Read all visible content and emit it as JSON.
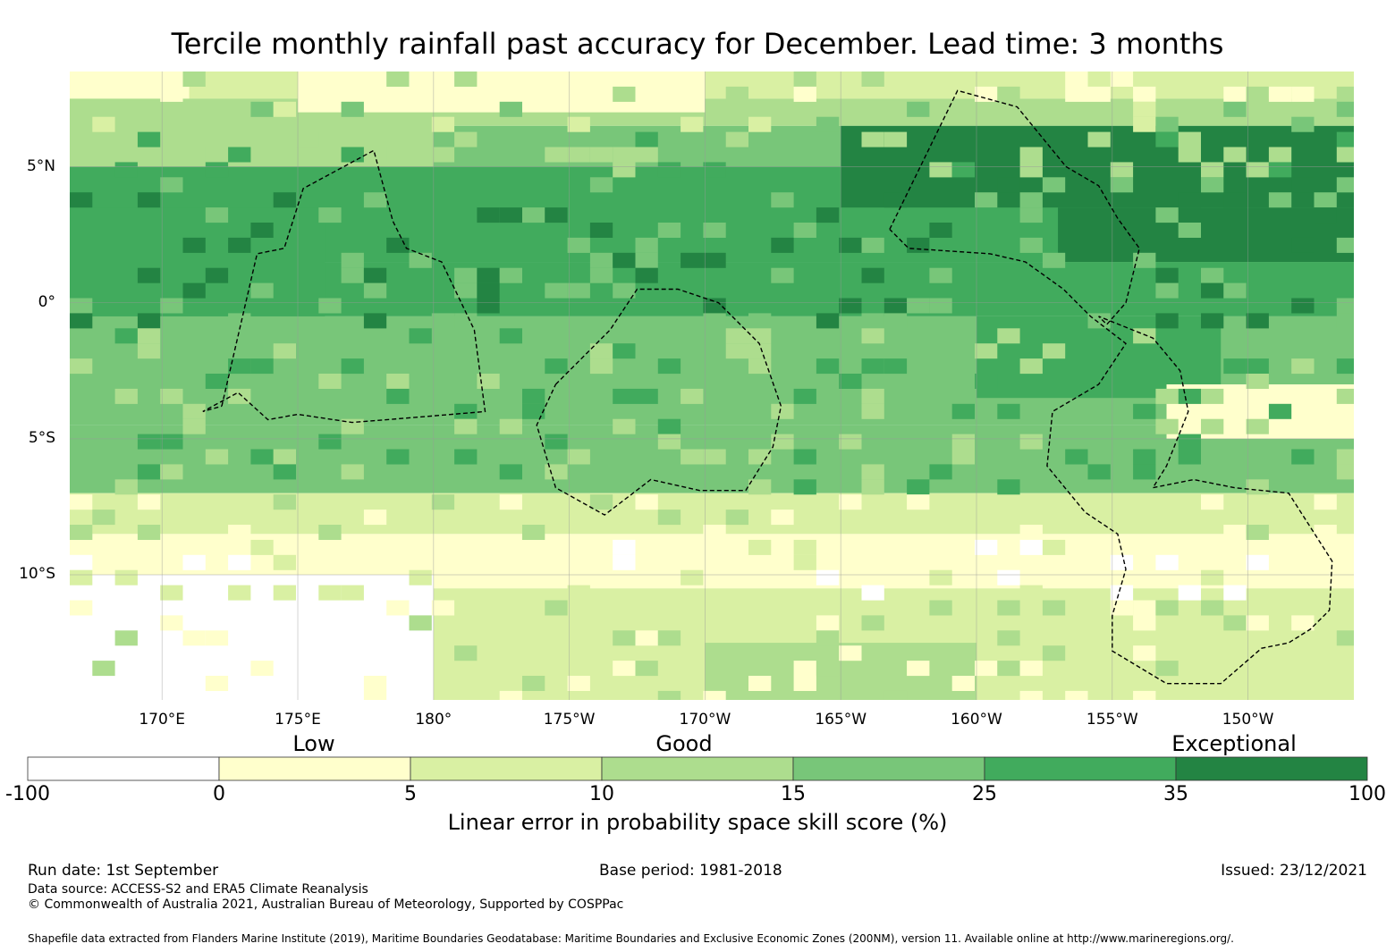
{
  "title": "Tercile monthly rainfall past accuracy for December. Lead time: 3 months",
  "map": {
    "lat_labels": [
      {
        "text": "5°N",
        "lat": 5
      },
      {
        "text": "0°",
        "lat": 0
      },
      {
        "text": "5°S",
        "lat": -5
      },
      {
        "text": "10°S",
        "lat": -10
      }
    ],
    "lon_labels": [
      {
        "text": "170°E",
        "lon": 170
      },
      {
        "text": "175°E",
        "lon": 175
      },
      {
        "text": "180°",
        "lon": 180
      },
      {
        "text": "175°W",
        "lon": 185
      },
      {
        "text": "170°W",
        "lon": 190
      },
      {
        "text": "165°W",
        "lon": 195
      },
      {
        "text": "160°W",
        "lon": 200
      },
      {
        "text": "155°W",
        "lon": 205
      },
      {
        "text": "150°W",
        "lon": 210
      }
    ],
    "extent": {
      "lon_min": 166.6,
      "lon_max": 213.9,
      "lat_min": -14.6,
      "lat_max": 8.5
    },
    "skill_bands": [
      {
        "lat_max": 8.5,
        "lat_min": 7.5,
        "level": 2
      },
      {
        "lat_max": 7.5,
        "lat_min": 6.5,
        "level": 3
      },
      {
        "lat_max": 6.5,
        "lat_min": 5.0,
        "level": 4
      },
      {
        "lat_max": 5.0,
        "lat_min": 1.5,
        "level": 5
      },
      {
        "lat_max": 1.5,
        "lat_min": -0.5,
        "level": 5
      },
      {
        "lat_max": -0.5,
        "lat_min": -4.5,
        "level": 4
      },
      {
        "lat_max": -4.5,
        "lat_min": -7.0,
        "level": 4
      },
      {
        "lat_max": -7.0,
        "lat_min": -8.5,
        "level": 2
      },
      {
        "lat_max": -8.5,
        "lat_min": -10.5,
        "level": 1
      },
      {
        "lat_max": -10.5,
        "lat_min": -14.6,
        "level": 2
      }
    ],
    "skill_patches": [
      {
        "lon": [
          195,
          214
        ],
        "lat": [
          3.5,
          6.5
        ],
        "level": 6
      },
      {
        "lon": [
          203,
          214
        ],
        "lat": [
          1.5,
          3.5
        ],
        "level": 6
      },
      {
        "lon": [
          166.6,
          176
        ],
        "lat": [
          -0.5,
          3.5
        ],
        "level": 5
      },
      {
        "lon": [
          200,
          209
        ],
        "lat": [
          -3.5,
          -0.5
        ],
        "level": 5
      },
      {
        "lon": [
          166.6,
          180
        ],
        "lat": [
          -14.6,
          -10.0
        ],
        "level": 0
      },
      {
        "lon": [
          166.6,
          171
        ],
        "lat": [
          7.5,
          8.5
        ],
        "level": 1
      },
      {
        "lon": [
          207,
          214
        ],
        "lat": [
          -5.0,
          -3.0
        ],
        "level": 1
      },
      {
        "lon": [
          190,
          200
        ],
        "lat": [
          -14.6,
          -12.5
        ],
        "level": 3
      },
      {
        "lon": [
          166.6,
          180
        ],
        "lat": [
          5.0,
          7.5
        ],
        "level": 3
      },
      {
        "lon": [
          175,
          190
        ],
        "lat": [
          7.0,
          8.5
        ],
        "level": 1
      }
    ],
    "eez_outlines": [
      {
        "name": "",
        "points": [
          [
            172.2,
            -3.8
          ],
          [
            173.5,
            1.8
          ],
          [
            174.5,
            2.0
          ],
          [
            175.2,
            4.2
          ],
          [
            177.8,
            5.6
          ],
          [
            178.5,
            3.0
          ],
          [
            179.0,
            2.0
          ],
          [
            180.3,
            1.5
          ],
          [
            181.5,
            -1.0
          ],
          [
            181.9,
            -4.0
          ],
          [
            179.5,
            -4.2
          ],
          [
            177.0,
            -4.4
          ],
          [
            175.0,
            -4.1
          ],
          [
            173.9,
            -4.3
          ],
          [
            172.8,
            -3.3
          ],
          [
            171.5,
            -4.0
          ],
          [
            172.2,
            -3.8
          ]
        ]
      },
      {
        "name": "",
        "points": [
          [
            184.5,
            -3.0
          ],
          [
            186.5,
            -1.0
          ],
          [
            187.5,
            0.5
          ],
          [
            189.0,
            0.5
          ],
          [
            190.5,
            0.0
          ],
          [
            192.0,
            -1.5
          ],
          [
            192.8,
            -3.8
          ],
          [
            192.5,
            -5.3
          ],
          [
            191.5,
            -6.9
          ],
          [
            189.8,
            -6.9
          ],
          [
            188.0,
            -6.5
          ],
          [
            186.3,
            -7.8
          ],
          [
            184.5,
            -6.8
          ],
          [
            183.8,
            -4.5
          ],
          [
            184.5,
            -3.0
          ]
        ]
      },
      {
        "name": "",
        "points": [
          [
            196.8,
            2.7
          ],
          [
            199.3,
            7.8
          ],
          [
            201.5,
            7.2
          ],
          [
            203.3,
            5.0
          ],
          [
            204.5,
            4.3
          ],
          [
            205.2,
            3.1
          ],
          [
            206.0,
            2.0
          ],
          [
            205.5,
            0.0
          ],
          [
            204.8,
            -0.8
          ],
          [
            204.5,
            -0.5
          ],
          [
            206.5,
            -1.3
          ],
          [
            207.5,
            -2.5
          ],
          [
            207.8,
            -4.0
          ],
          [
            207.0,
            -6.0
          ],
          [
            206.5,
            -6.8
          ],
          [
            208.0,
            -6.5
          ],
          [
            209.5,
            -6.8
          ],
          [
            211.5,
            -7.0
          ],
          [
            213.1,
            -9.5
          ],
          [
            213.0,
            -11.3
          ],
          [
            212.3,
            -12.0
          ],
          [
            211.5,
            -12.5
          ],
          [
            210.5,
            -12.7
          ],
          [
            209.0,
            -14.0
          ],
          [
            207.0,
            -14.0
          ],
          [
            205.0,
            -12.8
          ],
          [
            205.0,
            -11.5
          ],
          [
            205.5,
            -9.8
          ],
          [
            205.2,
            -8.5
          ],
          [
            204.0,
            -7.7
          ],
          [
            202.6,
            -6.0
          ],
          [
            202.8,
            -4.0
          ],
          [
            204.5,
            -3.0
          ],
          [
            205.5,
            -1.5
          ],
          [
            204.2,
            -0.5
          ],
          [
            203.2,
            0.5
          ],
          [
            201.8,
            1.5
          ],
          [
            200.5,
            1.8
          ],
          [
            197.5,
            2.0
          ],
          [
            196.8,
            2.7
          ]
        ]
      }
    ]
  },
  "colorbar": {
    "colors": [
      "#ffffff",
      "#ffffcc",
      "#d9f0a3",
      "#addd8e",
      "#78c679",
      "#41ab5d",
      "#238443"
    ],
    "boundaries": [
      "-100",
      "0",
      "5",
      "10",
      "15",
      "25",
      "35",
      "100"
    ],
    "category_labels": {
      "low": "Low",
      "good": "Good",
      "exceptional": "Exceptional"
    },
    "label": "Linear error in probability space skill score (%)"
  },
  "footer": {
    "run_date": "Run date: 1st September",
    "base_period": "Base period: 1981-2018",
    "issued": "Issued: 23/12/2021",
    "data_source": "Data source: ACCESS-S2 and ERA5 Climate Reanalysis",
    "copyright": "© Commonwealth of Australia 2021, Australian Bureau of Meteorology, Supported by COSPPac",
    "shapefile": "Shapefile data extracted from Flanders Marine Institute (2019), Maritime Boundaries Geodatabase: Maritime Boundaries and Exclusive Economic Zones (200NM), version 11. Available online at http://www.marineregions.org/."
  }
}
